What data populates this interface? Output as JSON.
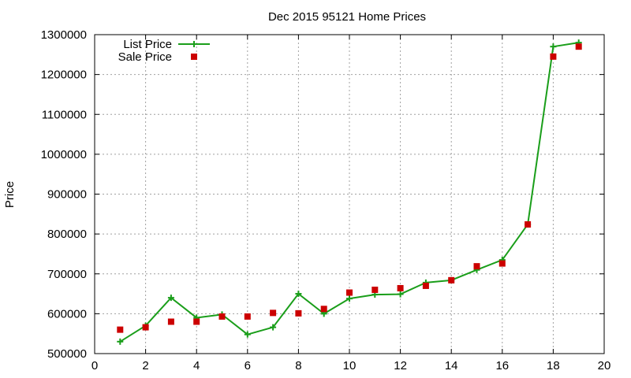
{
  "chart_data": {
    "type": "line",
    "title": "Dec 2015 95121 Home Prices",
    "xlabel": "",
    "ylabel": "Price",
    "xlim": [
      0,
      20
    ],
    "ylim": [
      500000,
      1300000
    ],
    "xticks": [
      0,
      2,
      4,
      6,
      8,
      10,
      12,
      14,
      16,
      18,
      20
    ],
    "yticks": [
      500000,
      600000,
      700000,
      800000,
      900000,
      1000000,
      1100000,
      1200000,
      1300000
    ],
    "grid": true,
    "legend_position": "top-left",
    "series": [
      {
        "name": "List Price",
        "kind": "line-with-plus-markers",
        "color": "#1a9e1a",
        "x": [
          1,
          2,
          3,
          4,
          5,
          6,
          7,
          8,
          9,
          10,
          11,
          12,
          13,
          14,
          15,
          16,
          17,
          18,
          19
        ],
        "values": [
          530000,
          570000,
          640000,
          590000,
          598000,
          548000,
          566000,
          650000,
          600000,
          638000,
          648000,
          649000,
          678000,
          684000,
          710000,
          735000,
          824000,
          1270000,
          1280000
        ]
      },
      {
        "name": "Sale Price",
        "kind": "square-markers",
        "color": "#cc0000",
        "x": [
          1,
          2,
          3,
          4,
          5,
          6,
          7,
          8,
          9,
          10,
          11,
          12,
          13,
          14,
          15,
          16,
          17,
          18,
          19
        ],
        "values": [
          560000,
          566000,
          580000,
          580000,
          593000,
          593000,
          602000,
          601000,
          612000,
          653000,
          660000,
          664000,
          670000,
          684000,
          719000,
          726000,
          824000,
          1245000,
          1270000
        ]
      }
    ]
  }
}
